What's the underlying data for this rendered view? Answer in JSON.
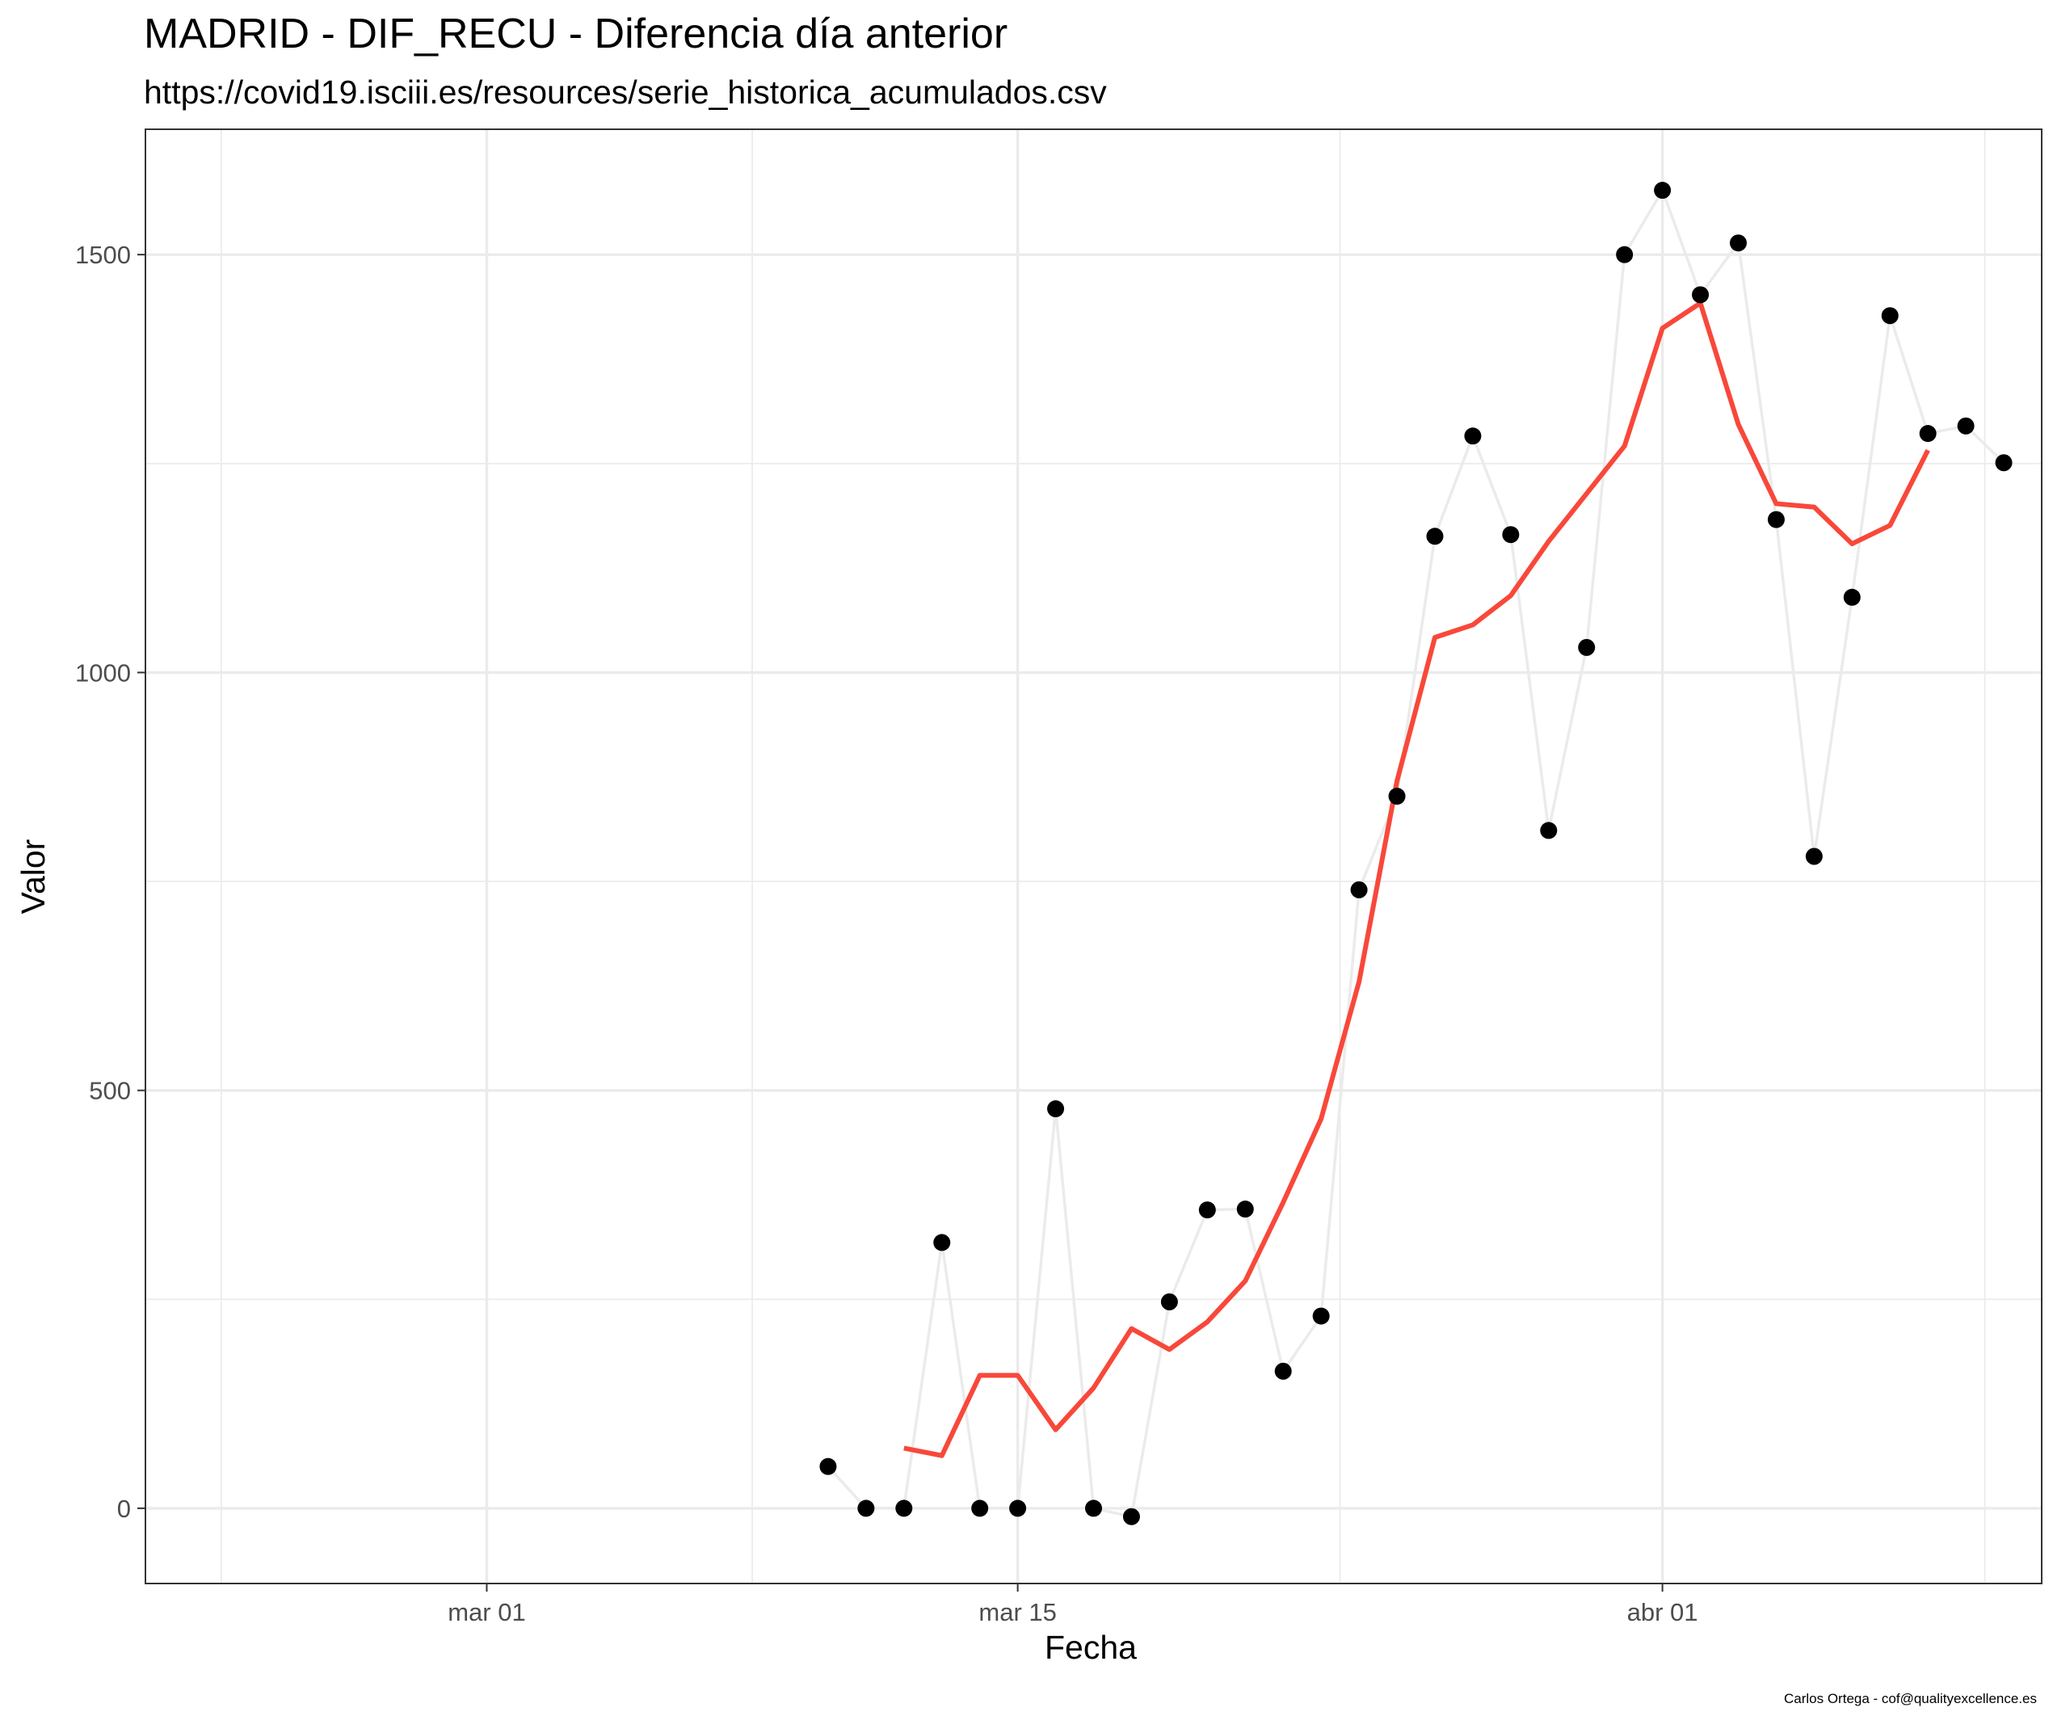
{
  "chart_data": {
    "type": "line",
    "title": "MADRID - DIF_RECU - Diferencia día anterior",
    "subtitle": "https://covid19.isciii.es/resources/serie_historica_acumulados.csv",
    "xlabel": "Fecha",
    "ylabel": "Valor",
    "caption": "Carlos Ortega - cof@qualityexcellence.es",
    "xlim": [
      "2020-02-21",
      "2020-04-11"
    ],
    "ylim": [
      -90,
      1650
    ],
    "x_ticks": [
      {
        "date": "2020-03-01",
        "label": "mar 01"
      },
      {
        "date": "2020-03-15",
        "label": "mar 15"
      },
      {
        "date": "2020-04-01",
        "label": "abr 01"
      }
    ],
    "y_ticks": [
      0,
      500,
      1000,
      1500
    ],
    "grid": true,
    "colors": {
      "points": "#000000",
      "raw_line": "#ebebeb",
      "smoothed_line": "#f8483a",
      "grid": "#ebebeb",
      "panel_border": "#333333"
    },
    "series": [
      {
        "style": "points-connected",
        "points": [
          {
            "x": "2020-03-10",
            "y": 50
          },
          {
            "x": "2020-03-11",
            "y": 0
          },
          {
            "x": "2020-03-12",
            "y": 0
          },
          {
            "x": "2020-03-13",
            "y": 318
          },
          {
            "x": "2020-03-14",
            "y": 0
          },
          {
            "x": "2020-03-15",
            "y": 0
          },
          {
            "x": "2020-03-16",
            "y": 478
          },
          {
            "x": "2020-03-17",
            "y": 0
          },
          {
            "x": "2020-03-18",
            "y": -10
          },
          {
            "x": "2020-03-19",
            "y": 247
          },
          {
            "x": "2020-03-20",
            "y": 357
          },
          {
            "x": "2020-03-21",
            "y": 358
          },
          {
            "x": "2020-03-22",
            "y": 164
          },
          {
            "x": "2020-03-23",
            "y": 230
          },
          {
            "x": "2020-03-24",
            "y": 740
          },
          {
            "x": "2020-03-25",
            "y": 852
          },
          {
            "x": "2020-03-26",
            "y": 1163
          },
          {
            "x": "2020-03-27",
            "y": 1283
          },
          {
            "x": "2020-03-28",
            "y": 1165
          },
          {
            "x": "2020-03-29",
            "y": 811
          },
          {
            "x": "2020-03-30",
            "y": 1030
          },
          {
            "x": "2020-03-31",
            "y": 1500
          },
          {
            "x": "2020-04-01",
            "y": 1577
          },
          {
            "x": "2020-04-02",
            "y": 1452
          },
          {
            "x": "2020-04-03",
            "y": 1514
          },
          {
            "x": "2020-04-04",
            "y": 1183
          },
          {
            "x": "2020-04-05",
            "y": 780
          },
          {
            "x": "2020-04-06",
            "y": 1090
          },
          {
            "x": "2020-04-07",
            "y": 1427
          },
          {
            "x": "2020-04-08",
            "y": 1286
          },
          {
            "x": "2020-04-09",
            "y": 1295
          },
          {
            "x": "2020-04-10",
            "y": 1251
          }
        ]
      },
      {
        "style": "smoothed-line",
        "points": [
          {
            "x": "2020-03-12",
            "y": 72
          },
          {
            "x": "2020-03-13",
            "y": 63
          },
          {
            "x": "2020-03-14",
            "y": 159
          },
          {
            "x": "2020-03-15",
            "y": 159
          },
          {
            "x": "2020-03-16",
            "y": 94
          },
          {
            "x": "2020-03-17",
            "y": 144
          },
          {
            "x": "2020-03-18",
            "y": 215
          },
          {
            "x": "2020-03-19",
            "y": 190
          },
          {
            "x": "2020-03-20",
            "y": 223
          },
          {
            "x": "2020-03-21",
            "y": 272
          },
          {
            "x": "2020-03-22",
            "y": 366
          },
          {
            "x": "2020-03-23",
            "y": 466
          },
          {
            "x": "2020-03-24",
            "y": 630
          },
          {
            "x": "2020-03-25",
            "y": 870
          },
          {
            "x": "2020-03-26",
            "y": 1042
          },
          {
            "x": "2020-03-27",
            "y": 1057
          },
          {
            "x": "2020-03-28",
            "y": 1092
          },
          {
            "x": "2020-03-29",
            "y": 1157
          },
          {
            "x": "2020-03-30",
            "y": 1214
          },
          {
            "x": "2020-03-31",
            "y": 1271
          },
          {
            "x": "2020-04-01",
            "y": 1412
          },
          {
            "x": "2020-04-02",
            "y": 1442
          },
          {
            "x": "2020-04-03",
            "y": 1297
          },
          {
            "x": "2020-04-04",
            "y": 1202
          },
          {
            "x": "2020-04-05",
            "y": 1198
          },
          {
            "x": "2020-04-06",
            "y": 1154
          },
          {
            "x": "2020-04-07",
            "y": 1176
          },
          {
            "x": "2020-04-08",
            "y": 1266
          }
        ]
      }
    ]
  }
}
